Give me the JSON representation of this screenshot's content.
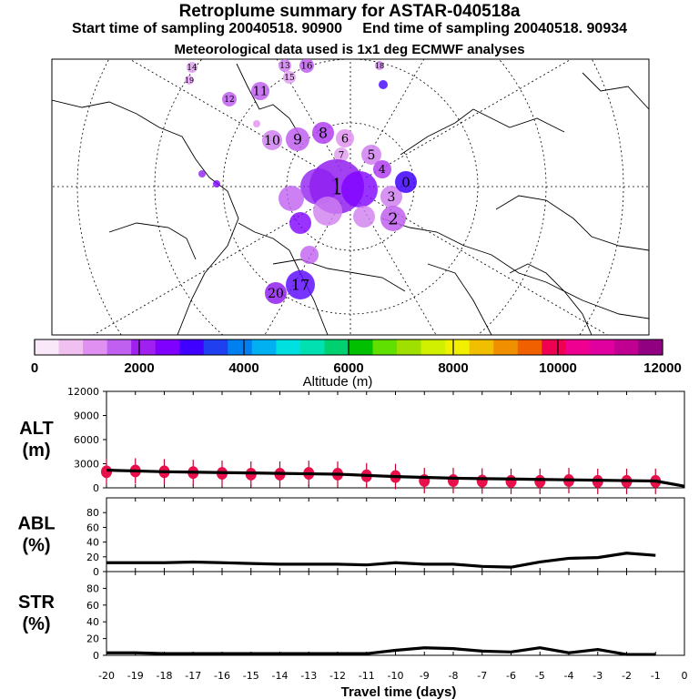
{
  "title": "Retroplume summary for ASTAR-040518a",
  "subtitle": "Start time of sampling 20040518. 90900     End time of sampling 20040518. 90934",
  "met_info": "Meteorological data used is 1x1 deg ECMWF analyses",
  "colorbar": {
    "title": "Altitude (m)",
    "tick_labels": [
      "0",
      "2000",
      "4000",
      "6000",
      "8000",
      "10000",
      "12000"
    ],
    "colors": [
      "#f8e8f8",
      "#f0c0f0",
      "#e090f0",
      "#c060f0",
      "#a020f0",
      "#8000ff",
      "#4000ff",
      "#2040f0",
      "#0080f0",
      "#00b0f0",
      "#00e0e0",
      "#00e0b0",
      "#00d070",
      "#00c000",
      "#60e000",
      "#a0e000",
      "#d0f000",
      "#f0f000",
      "#f0c000",
      "#f09000",
      "#f06000",
      "#f00050",
      "#f00090",
      "#e000a0",
      "#c00090",
      "#900080"
    ]
  },
  "map": {
    "clusters": [
      {
        "label": "14",
        "color": "#e0a0f0"
      },
      {
        "label": "13",
        "color": "#d080f0"
      },
      {
        "label": "15",
        "color": "#e0a0f0"
      },
      {
        "label": "16",
        "color": "#c060f0"
      },
      {
        "label": "19",
        "color": "#e0a0f0"
      },
      {
        "label": "18",
        "color": "#d080f0"
      },
      {
        "label": "12",
        "color": "#c060f0"
      },
      {
        "label": "11",
        "color": "#c060f0"
      },
      {
        "label": "10",
        "color": "#d080f0"
      },
      {
        "label": "9",
        "color": "#c060f0"
      },
      {
        "label": "8",
        "color": "#b040f0"
      },
      {
        "label": "6",
        "color": "#e090f0"
      },
      {
        "label": "5",
        "color": "#d080f0"
      },
      {
        "label": "7",
        "color": "#e0a0f0"
      },
      {
        "label": "4",
        "color": "#b040f0"
      },
      {
        "label": "3",
        "color": "#d080f0"
      },
      {
        "label": "2",
        "color": "#c060f0"
      },
      {
        "label": "1",
        "color": "#9020f0"
      },
      {
        "label": "0",
        "color": "#4000ff"
      },
      {
        "label": "20",
        "color": "#9020f0"
      },
      {
        "label": "17",
        "color": "#6010ff"
      }
    ]
  },
  "chart_data": [
    {
      "type": "line",
      "title": "ALT (m)",
      "ylabel": "ALT\n(m)",
      "xlabel": "Travel time (days)",
      "x": [
        -20,
        -19,
        -18,
        -17,
        -16,
        -15,
        -14,
        -13,
        -12,
        -11,
        -10,
        -9,
        -8,
        -7,
        -6,
        -5,
        -4,
        -3,
        -2,
        -1,
        0
      ],
      "values": [
        2200,
        2100,
        2000,
        1950,
        1900,
        1850,
        1800,
        1750,
        1700,
        1550,
        1400,
        1300,
        1200,
        1150,
        1100,
        1050,
        1000,
        950,
        900,
        850,
        200
      ],
      "point_values": [
        2000,
        2100,
        2000,
        1900,
        1800,
        1700,
        1700,
        1800,
        1700,
        1500,
        1400,
        900,
        900,
        850,
        800,
        800,
        900,
        800,
        800,
        800
      ],
      "ylim": [
        0,
        12000
      ],
      "yticks": [
        "0",
        "3000",
        "6000",
        "9000",
        "12000"
      ]
    },
    {
      "type": "line",
      "title": "ABL (%)",
      "ylabel": "ABL\n(%)",
      "x": [
        -20,
        -19,
        -18,
        -17,
        -16,
        -15,
        -14,
        -13,
        -12,
        -11,
        -10,
        -9,
        -8,
        -7,
        -6,
        -5,
        -4,
        -3,
        -2,
        -1
      ],
      "values": [
        12,
        12,
        12,
        13,
        12,
        11,
        10,
        10,
        10,
        9,
        12,
        10,
        10,
        7,
        6,
        13,
        18,
        19,
        25,
        22
      ],
      "ylim": [
        0,
        100
      ],
      "yticks": [
        "0",
        "20",
        "40",
        "60",
        "80"
      ]
    },
    {
      "type": "line",
      "title": "STR (%)",
      "ylabel": "STR\n(%)",
      "x": [
        -20,
        -19,
        -18,
        -17,
        -16,
        -15,
        -14,
        -13,
        -12,
        -11,
        -10,
        -9,
        -8,
        -7,
        -6,
        -5,
        -4,
        -3,
        -2,
        -1
      ],
      "values": [
        3,
        3,
        2,
        2,
        2,
        2,
        2,
        2,
        2,
        2,
        6,
        9,
        8,
        5,
        4,
        9,
        3,
        7,
        1,
        1
      ],
      "ylim": [
        0,
        100
      ],
      "yticks": [
        "0",
        "20",
        "40",
        "60",
        "80"
      ]
    }
  ],
  "xaxis": {
    "label": "Travel time (days)",
    "tick_labels": [
      "-20",
      "-19",
      "-18",
      "-17",
      "-16",
      "-15",
      "-14",
      "-13",
      "-12",
      "-11",
      "-10",
      "-9",
      "-8",
      "-7",
      "-6",
      "-5",
      "-4",
      "-3",
      "-2",
      "-1",
      "0"
    ]
  }
}
